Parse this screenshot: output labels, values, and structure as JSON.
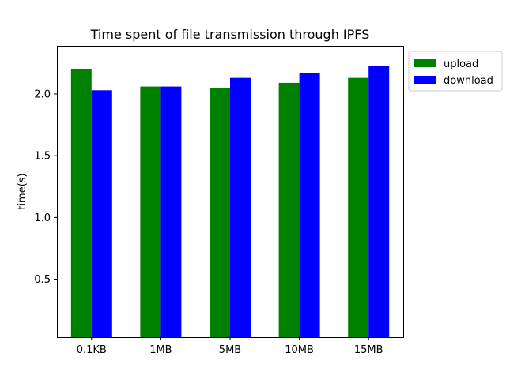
{
  "chart_data": {
    "type": "bar",
    "title": "Time spent of file transmission through IPFS",
    "xlabel": "",
    "ylabel": "time(s)",
    "categories": [
      "0.1KB",
      "1MB",
      "5MB",
      "10MB",
      "15MB"
    ],
    "series": [
      {
        "name": "upload",
        "color": "#008000",
        "values": [
          2.2,
          2.06,
          2.05,
          2.09,
          2.13
        ]
      },
      {
        "name": "download",
        "color": "#0000ff",
        "values": [
          2.03,
          2.06,
          2.13,
          2.17,
          2.23
        ]
      }
    ],
    "ylim": [
      0.03,
      2.39
    ],
    "yticks": [
      "0.5",
      "1.0",
      "1.5",
      "2.0"
    ],
    "grid": false,
    "legend_position": "outside top-right"
  }
}
